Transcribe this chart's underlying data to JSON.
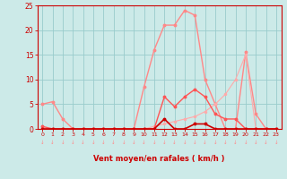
{
  "x": [
    0,
    1,
    2,
    3,
    4,
    5,
    6,
    7,
    8,
    9,
    10,
    11,
    12,
    13,
    14,
    15,
    16,
    17,
    18,
    19,
    20,
    21,
    22,
    23
  ],
  "line_bright_red": [
    0,
    0,
    0,
    0,
    0,
    0,
    0,
    0,
    0,
    0,
    0,
    0,
    2,
    0,
    0,
    1,
    1,
    0,
    0,
    0,
    0,
    0,
    0,
    0
  ],
  "line_med_red": [
    0.5,
    0,
    0,
    0,
    0,
    0,
    0,
    0,
    0,
    0,
    0,
    0,
    6.5,
    4.5,
    6.5,
    8,
    6.5,
    3,
    2,
    2,
    0,
    0,
    0,
    0
  ],
  "line_peak": [
    5,
    5.5,
    2,
    0,
    0,
    0,
    0,
    0,
    0,
    0,
    8.5,
    16,
    21,
    21,
    24,
    23,
    10,
    5,
    0,
    0,
    15.5,
    3,
    0,
    0
  ],
  "line_diag": [
    0,
    0,
    0,
    0,
    0,
    0,
    0,
    0,
    0,
    0,
    0,
    0.5,
    1,
    1.5,
    2,
    2.5,
    3.5,
    5,
    7,
    10,
    15,
    0,
    0,
    0
  ],
  "xlim": [
    -0.5,
    23.5
  ],
  "ylim": [
    0,
    25
  ],
  "xlabel": "Vent moyen/en rafales ( km/h )",
  "bg_color": "#cceae8",
  "grid_color": "#99cccc",
  "color_bright_red": "#cc0000",
  "color_med_red": "#cc0000",
  "color_peak": "#ff8888",
  "color_diag": "#ffaaaa",
  "axis_color": "#cc0000",
  "yticks": [
    0,
    5,
    10,
    15,
    20,
    25
  ],
  "ytick_labels": [
    "0",
    "5",
    "10",
    "15",
    "20",
    "25"
  ],
  "xticks": [
    0,
    1,
    2,
    3,
    4,
    5,
    6,
    7,
    8,
    9,
    10,
    11,
    12,
    13,
    14,
    15,
    16,
    17,
    18,
    19,
    20,
    21,
    22,
    23
  ]
}
